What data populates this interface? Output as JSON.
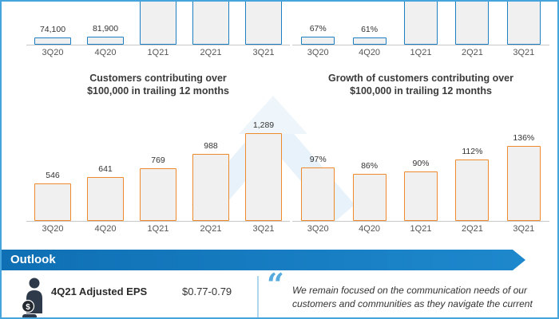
{
  "slide": {
    "background": "#ffffff",
    "border_color": "#45a4dc"
  },
  "watermark": {
    "icon": "up-arrow-watermark",
    "color": "#e8f2fa"
  },
  "chart_data": [
    {
      "id": "customers-top",
      "type": "bar",
      "categories": [
        "3Q20",
        "4Q20",
        "1Q21",
        "2Q21",
        "3Q21"
      ],
      "values": [
        74100,
        81900,
        null,
        null,
        null
      ],
      "value_labels": [
        "74,100",
        "81,900",
        "",
        "",
        ""
      ],
      "clipped_bars": [
        false,
        false,
        true,
        true,
        true
      ],
      "bar_outline": "#1b7fc2",
      "bar_fill": "#f0f0f0"
    },
    {
      "id": "growth-top",
      "type": "bar",
      "categories": [
        "3Q20",
        "4Q20",
        "1Q21",
        "2Q21",
        "3Q21"
      ],
      "values": [
        67,
        61,
        null,
        null,
        null
      ],
      "value_labels": [
        "67%",
        "61%",
        "",
        "",
        ""
      ],
      "clipped_bars": [
        false,
        false,
        true,
        true,
        true
      ],
      "bar_outline": "#1b7fc2",
      "bar_fill": "#f0f0f0"
    },
    {
      "id": "customers-100k",
      "type": "bar",
      "title": "Customers contributing over $100,000 in trailing 12 months",
      "title_lines": [
        "Customers contributing over",
        "$100,000 in trailing 12 months"
      ],
      "categories": [
        "3Q20",
        "4Q20",
        "1Q21",
        "2Q21",
        "3Q21"
      ],
      "values": [
        546,
        641,
        769,
        988,
        1289
      ],
      "value_labels": [
        "546",
        "641",
        "769",
        "988",
        "1,289"
      ],
      "bar_outline": "#ee8a2b",
      "bar_fill": "#f0f0f0"
    },
    {
      "id": "growth-100k",
      "type": "bar",
      "title": "Growth of customers contributing over $100,000 in trailing 12 months",
      "title_lines": [
        "Growth of customers contributing over",
        "$100,000 in trailing 12 months"
      ],
      "categories": [
        "3Q20",
        "4Q20",
        "1Q21",
        "2Q21",
        "3Q21"
      ],
      "values": [
        97,
        86,
        90,
        112,
        136
      ],
      "value_labels": [
        "97%",
        "86%",
        "90%",
        "112%",
        "136%"
      ],
      "bar_outline": "#ee8a2b",
      "bar_fill": "#f0f0f0"
    }
  ],
  "outlook": {
    "title": "Outlook",
    "banner_color": "#1478bd",
    "eps": {
      "icon": "person-dollar-icon",
      "label": "4Q21 Adjusted EPS",
      "value": "$0.77-0.79"
    },
    "quote": {
      "mark": "“",
      "lines": [
        "We remain focused on the communication needs of our",
        "customers and communities as they navigate the current"
      ]
    }
  }
}
